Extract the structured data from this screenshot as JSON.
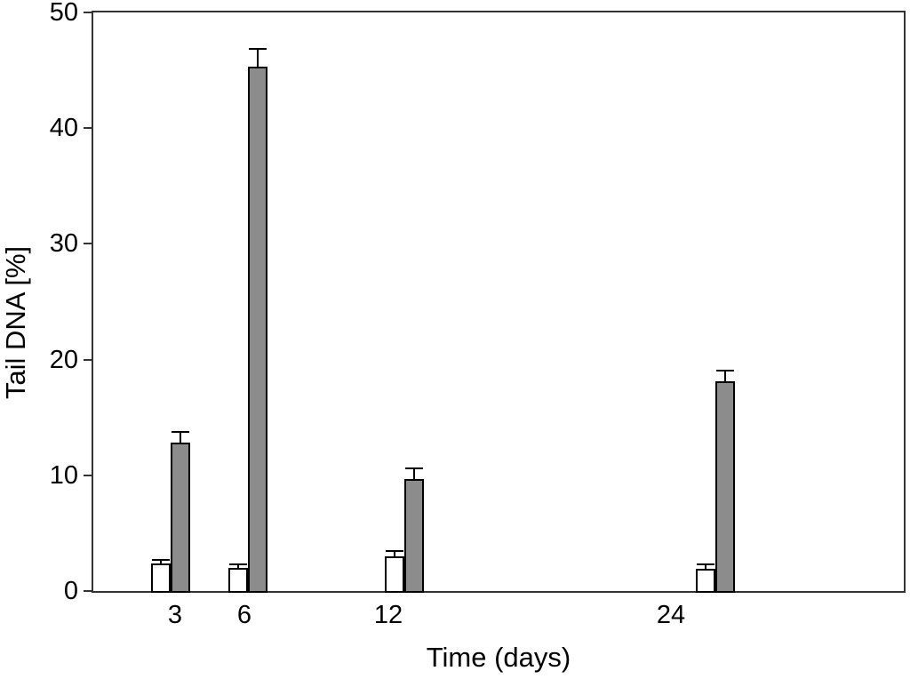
{
  "chart_data": {
    "type": "bar",
    "title": "",
    "xlabel": "Time (days)",
    "ylabel": "Tail DNA [%]",
    "categories": [
      "3",
      "6",
      "12",
      "24"
    ],
    "series": [
      {
        "name": "white-bars",
        "fill": "#ffffff",
        "values": [
          2.4,
          2.0,
          3.0,
          1.9
        ],
        "errors_plus": [
          0.4,
          0.4,
          0.5,
          0.5
        ]
      },
      {
        "name": "gray-bars",
        "fill": "#8c8c8c",
        "values": [
          12.8,
          45.3,
          9.7,
          18.1
        ],
        "errors_plus": [
          1.0,
          1.6,
          1.0,
          1.0
        ]
      }
    ],
    "ylim": [
      0,
      50
    ],
    "yticks": [
      0,
      10,
      20,
      30,
      40,
      50
    ],
    "grid": false,
    "legend_position": "none",
    "bar_outline_color": "#000000",
    "error_bar_color": "#000000",
    "axis_color": "#333333",
    "background": "#ffffff"
  }
}
